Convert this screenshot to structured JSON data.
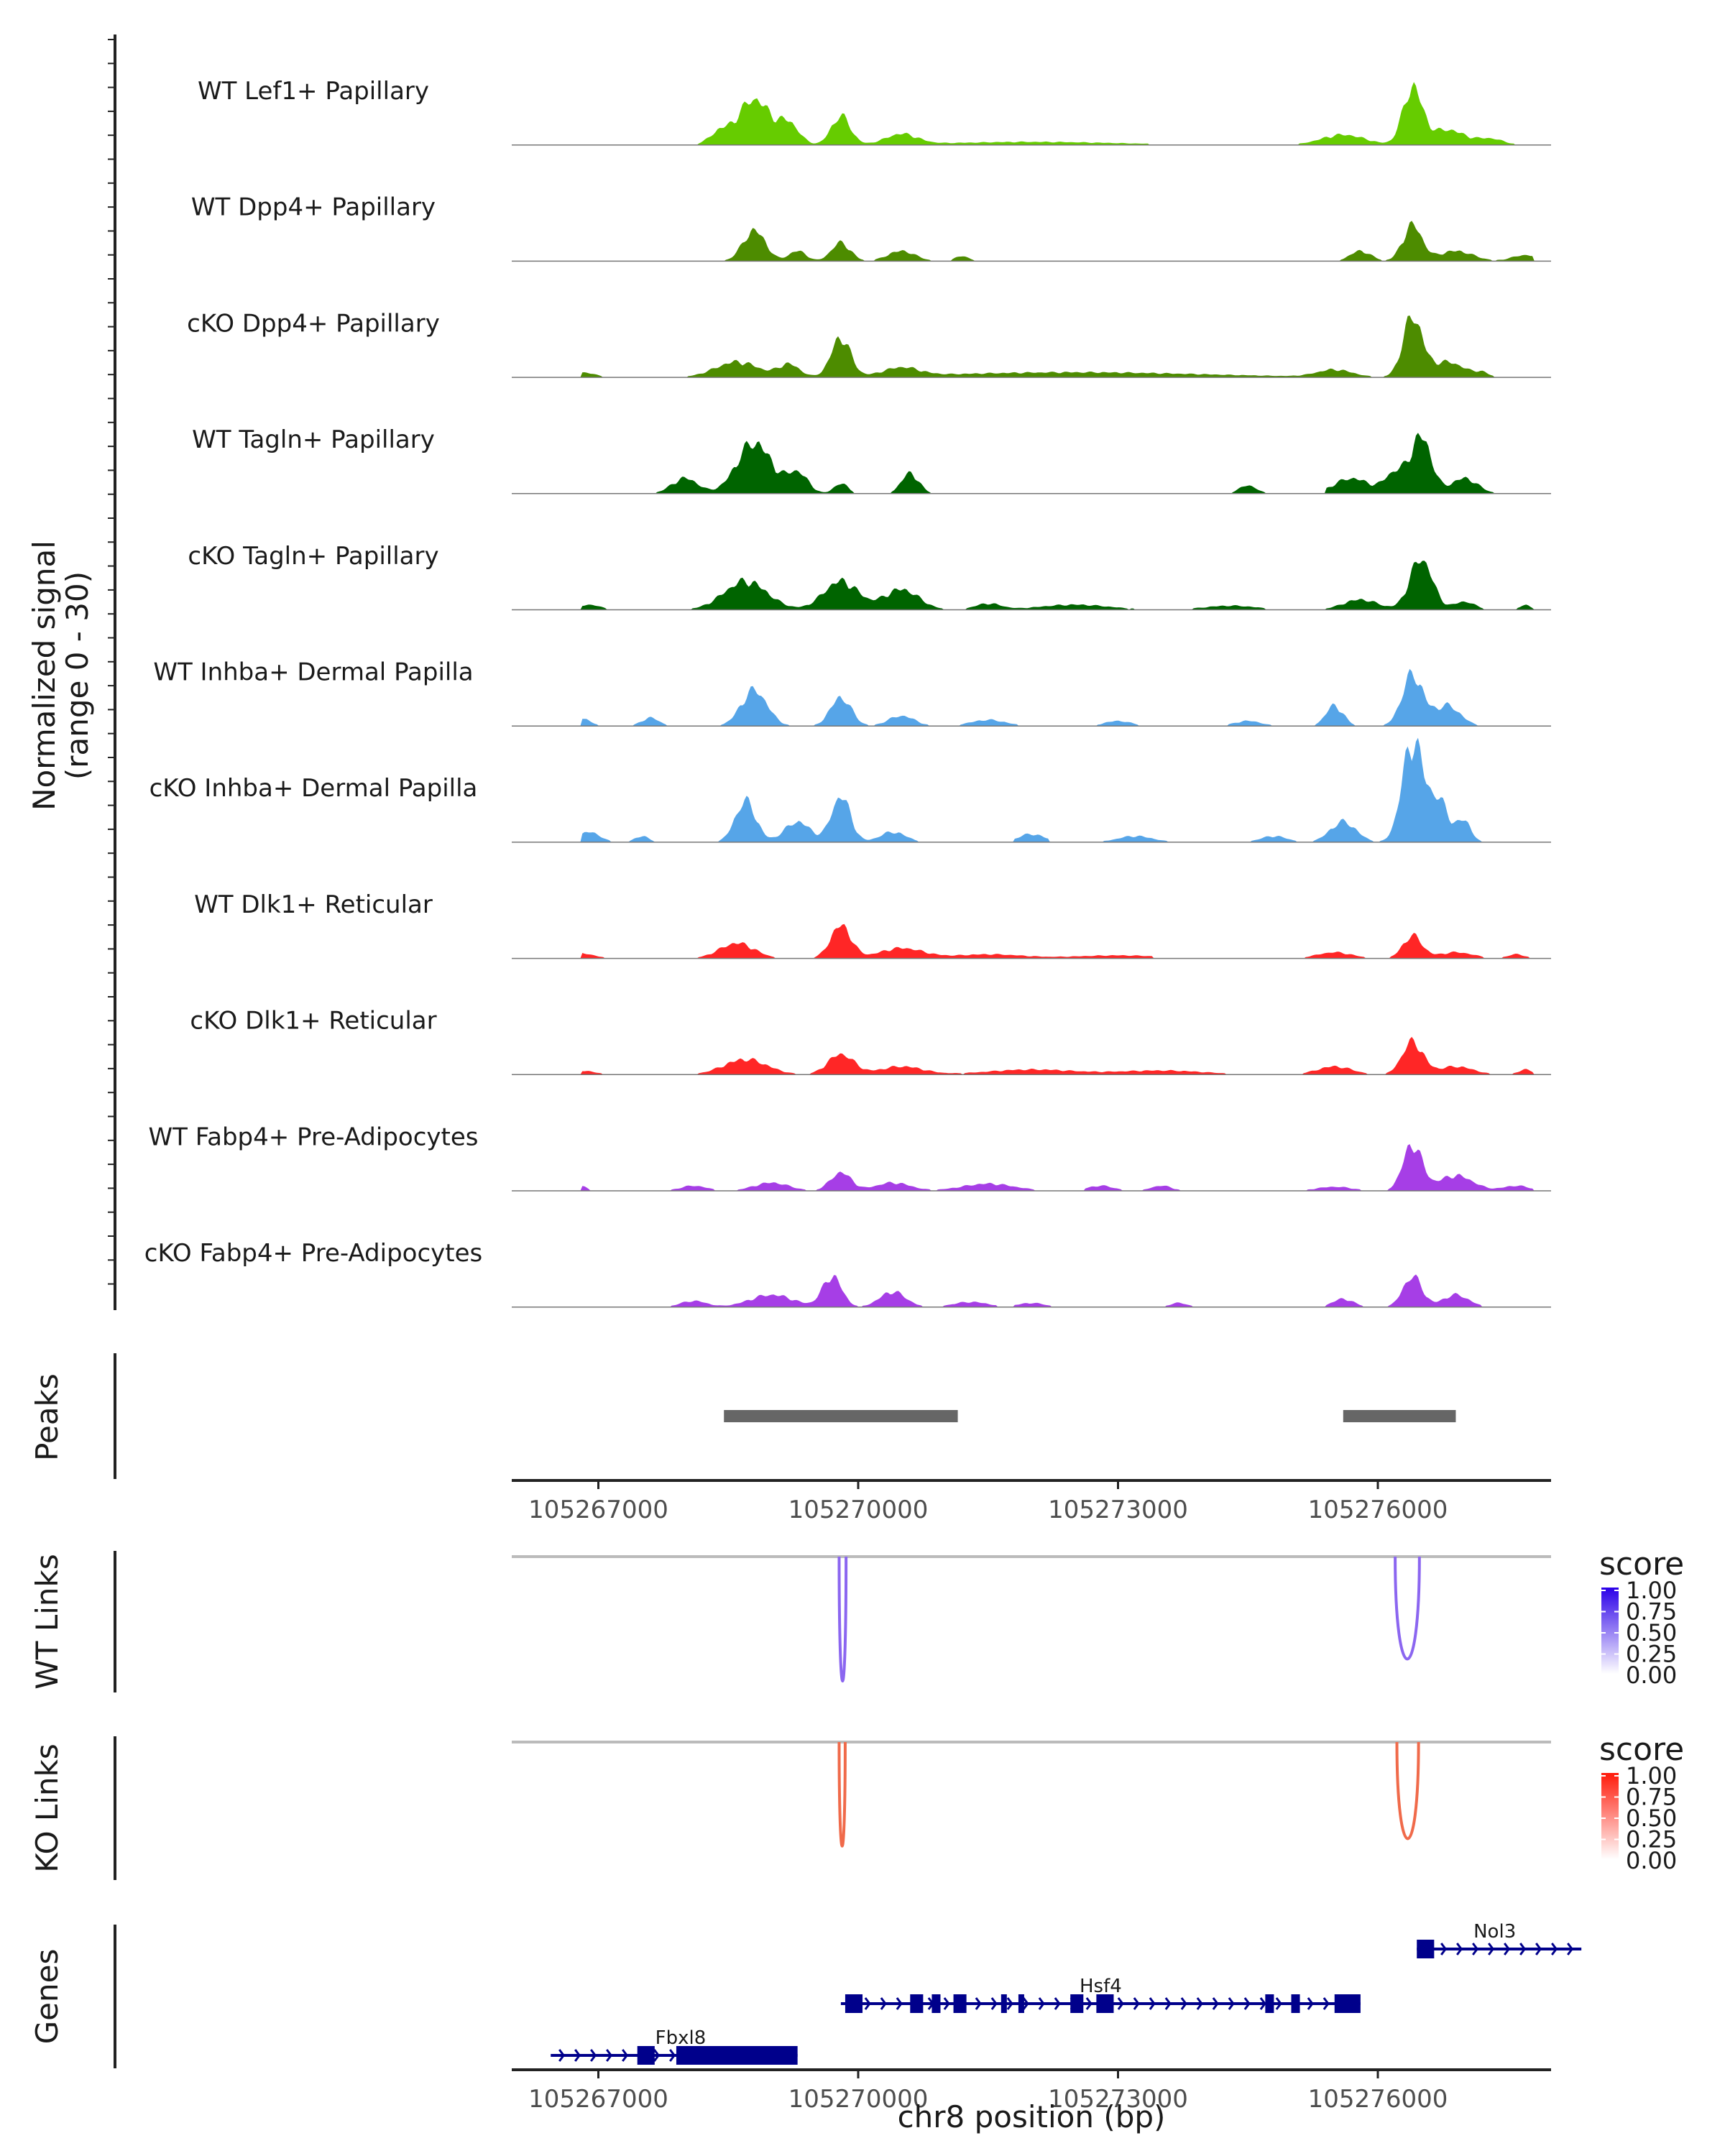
{
  "chart_data": {
    "type": "genome-browser coverage",
    "region": {
      "chrom": "chr8",
      "start": 105266000,
      "end": 105278000
    },
    "coverage": {
      "y_title_line1": "Normalized signal",
      "y_title_line2": "(range 0 - 30)",
      "ylim": [
        0,
        30
      ],
      "tracks": [
        {
          "name": "WT Lef1+ Papillary",
          "color": "#66cc00",
          "peaks": [
            [
              105268400,
              0.12,
              120
            ],
            [
              105268800,
              0.45,
              180
            ],
            [
              105269200,
              0.2,
              120
            ],
            [
              105269800,
              0.28,
              110
            ],
            [
              105270500,
              0.1,
              180
            ],
            [
              105272000,
              0.03,
              1000
            ],
            [
              105275600,
              0.1,
              250
            ],
            [
              105276400,
              0.55,
              110
            ],
            [
              105276800,
              0.15,
              200
            ],
            [
              105277300,
              0.06,
              150
            ]
          ],
          "gaps": []
        },
        {
          "name": "WT Dpp4+ Papillary",
          "color": "#4d8c00",
          "peaks": [
            [
              105266700,
              0.05,
              30
            ],
            [
              105268800,
              0.3,
              130
            ],
            [
              105269300,
              0.1,
              100
            ],
            [
              105269800,
              0.18,
              110
            ],
            [
              105270500,
              0.1,
              160
            ],
            [
              105271200,
              0.05,
              80
            ],
            [
              105275800,
              0.1,
              120
            ],
            [
              105276400,
              0.35,
              110
            ],
            [
              105276900,
              0.1,
              200
            ],
            [
              105277700,
              0.06,
              150
            ]
          ],
          "gaps": [
            [
              105266850,
              105268200
            ],
            [
              105271500,
              105275200
            ]
          ]
        },
        {
          "name": "cKO Dpp4+ Papillary",
          "color": "#4d8c00",
          "peaks": [
            [
              105266800,
              0.05,
              150
            ],
            [
              105268600,
              0.15,
              250
            ],
            [
              105269200,
              0.12,
              120
            ],
            [
              105269800,
              0.38,
              110
            ],
            [
              105270500,
              0.08,
              200
            ],
            [
              105272500,
              0.05,
              1500
            ],
            [
              105275500,
              0.07,
              200
            ],
            [
              105276400,
              0.58,
              110
            ],
            [
              105276800,
              0.15,
              200
            ],
            [
              105277200,
              0.04,
              80
            ]
          ],
          "gaps": []
        },
        {
          "name": "WT Tagln+ Papillary",
          "color": "#006400",
          "peaks": [
            [
              105268000,
              0.15,
              150
            ],
            [
              105268800,
              0.5,
              200
            ],
            [
              105269300,
              0.2,
              120
            ],
            [
              105269800,
              0.1,
              80
            ],
            [
              105270600,
              0.2,
              100
            ],
            [
              105274500,
              0.08,
              100
            ],
            [
              105275700,
              0.15,
              200
            ],
            [
              105276200,
              0.2,
              120
            ],
            [
              105276500,
              0.55,
              120
            ],
            [
              105277000,
              0.15,
              150
            ]
          ],
          "gaps": [
            [
              105270900,
              105274200
            ],
            [
              105274800,
              105275400
            ]
          ]
        },
        {
          "name": "cKO Tagln+ Papillary",
          "color": "#006400",
          "peaks": [
            [
              105266900,
              0.05,
              120
            ],
            [
              105268700,
              0.28,
              250
            ],
            [
              105269800,
              0.28,
              200
            ],
            [
              105270500,
              0.2,
              200
            ],
            [
              105271500,
              0.06,
              150
            ],
            [
              105272500,
              0.05,
              400
            ],
            [
              105274300,
              0.04,
              300
            ],
            [
              105275800,
              0.1,
              200
            ],
            [
              105276500,
              0.5,
              130
            ],
            [
              105277000,
              0.08,
              120
            ],
            [
              105277700,
              0.05,
              60
            ]
          ],
          "gaps": []
        },
        {
          "name": "WT Inhba+ Dermal Papilla",
          "color": "#56a5e8",
          "peaks": [
            [
              105266800,
              0.08,
              100
            ],
            [
              105267600,
              0.08,
              100
            ],
            [
              105268800,
              0.35,
              150
            ],
            [
              105269800,
              0.28,
              120
            ],
            [
              105270500,
              0.1,
              150
            ],
            [
              105271500,
              0.06,
              200
            ],
            [
              105273000,
              0.05,
              150
            ],
            [
              105274500,
              0.05,
              150
            ],
            [
              105275500,
              0.2,
              100
            ],
            [
              105276400,
              0.5,
              120
            ],
            [
              105276800,
              0.2,
              150
            ],
            [
              105277900,
              0.04,
              60
            ]
          ],
          "gaps": []
        },
        {
          "name": "cKO Inhba+ Dermal Papilla",
          "color": "#56a5e8",
          "peaks": [
            [
              105266900,
              0.1,
              120
            ],
            [
              105267500,
              0.06,
              80
            ],
            [
              105268700,
              0.4,
              120
            ],
            [
              105269300,
              0.2,
              150
            ],
            [
              105269800,
              0.45,
              110
            ],
            [
              105270400,
              0.1,
              150
            ],
            [
              105272000,
              0.08,
              150
            ],
            [
              105273200,
              0.06,
              200
            ],
            [
              105274800,
              0.06,
              150
            ],
            [
              105275600,
              0.2,
              150
            ],
            [
              105276400,
              0.98,
              120
            ],
            [
              105276700,
              0.4,
              120
            ],
            [
              105277000,
              0.2,
              80
            ]
          ],
          "gaps": [
            [
              105267900,
              105268300
            ],
            [
              105270800,
              105271800
            ],
            [
              105272200,
              105272800
            ],
            [
              105273700,
              105274500
            ]
          ]
        },
        {
          "name": "WT Dlk1+ Reticular",
          "color": "#ff2626",
          "peaks": [
            [
              105266800,
              0.05,
              150
            ],
            [
              105268600,
              0.15,
              200
            ],
            [
              105269800,
              0.32,
              120
            ],
            [
              105270500,
              0.1,
              250
            ],
            [
              105271500,
              0.04,
              400
            ],
            [
              105273000,
              0.03,
              500
            ],
            [
              105275500,
              0.06,
              200
            ],
            [
              105276400,
              0.22,
              110
            ],
            [
              105276900,
              0.06,
              200
            ],
            [
              105277600,
              0.04,
              100
            ]
          ],
          "gaps": [
            [
              105273400,
              105274800
            ]
          ]
        },
        {
          "name": "cKO Dlk1+ Reticular",
          "color": "#ff2626",
          "peaks": [
            [
              105266800,
              0.04,
              150
            ],
            [
              105268700,
              0.15,
              250
            ],
            [
              105269800,
              0.2,
              150
            ],
            [
              105270500,
              0.08,
              250
            ],
            [
              105272000,
              0.05,
              500
            ],
            [
              105273500,
              0.04,
              500
            ],
            [
              105275500,
              0.08,
              200
            ],
            [
              105276400,
              0.32,
              120
            ],
            [
              105276900,
              0.08,
              200
            ],
            [
              105277700,
              0.05,
              80
            ]
          ],
          "gaps": []
        },
        {
          "name": "WT Fabp4+ Pre-Adipocytes",
          "color": "#a63ee6",
          "peaks": [
            [
              105266800,
              0.05,
              60
            ],
            [
              105268100,
              0.05,
              150
            ],
            [
              105269000,
              0.08,
              200
            ],
            [
              105269800,
              0.18,
              120
            ],
            [
              105270400,
              0.08,
              200
            ],
            [
              105271500,
              0.07,
              300
            ],
            [
              105272800,
              0.05,
              150
            ],
            [
              105273500,
              0.05,
              120
            ],
            [
              105275500,
              0.04,
              200
            ],
            [
              105276400,
              0.45,
              110
            ],
            [
              105276900,
              0.15,
              200
            ],
            [
              105277600,
              0.05,
              150
            ]
          ],
          "gaps": [
            [
              105266950,
              105267700
            ],
            [
              105272100,
              105272600
            ],
            [
              105273800,
              105275000
            ]
          ]
        },
        {
          "name": "cKO Fabp4+ Pre-Adipocytes",
          "color": "#a63ee6",
          "peaks": [
            [
              105268100,
              0.06,
              150
            ],
            [
              105269000,
              0.12,
              250
            ],
            [
              105269700,
              0.3,
              110
            ],
            [
              105270400,
              0.15,
              150
            ],
            [
              105271300,
              0.05,
              200
            ],
            [
              105272000,
              0.04,
              150
            ],
            [
              105273700,
              0.04,
              100
            ],
            [
              105275600,
              0.08,
              120
            ],
            [
              105276400,
              0.3,
              110
            ],
            [
              105276900,
              0.12,
              150
            ]
          ],
          "gaps": [
            [
              105266000,
              105267800
            ],
            [
              105271600,
              105271800
            ],
            [
              105272300,
              105273400
            ],
            [
              105273900,
              105274500
            ],
            [
              105274700,
              105275400
            ],
            [
              105277200,
              105278000
            ]
          ]
        }
      ]
    },
    "peaks_track": {
      "title": "Peaks",
      "regions": [
        [
          105268450,
          105271150
        ],
        [
          105275600,
          105276900
        ]
      ]
    },
    "x_axis": {
      "ticks": [
        105267000,
        105270000,
        105273000,
        105276000
      ],
      "tick_labels": [
        "105267000",
        "105270000",
        "105273000",
        "105276000"
      ]
    },
    "links": [
      {
        "title": "WT Links",
        "legend_title": "score",
        "legend_ticks": [
          "1.00",
          "0.75",
          "0.50",
          "0.25",
          "0.00"
        ],
        "color_high": "#2b00e8",
        "color_mid": "#8b66f0",
        "arcs": [
          [
            105269780,
            105269860,
            0.85
          ],
          [
            105276200,
            105276480,
            0.7
          ]
        ]
      },
      {
        "title": "KO Links",
        "legend_title": "score",
        "legend_ticks": [
          "1.00",
          "0.75",
          "0.50",
          "0.25",
          "0.00"
        ],
        "color_high": "#ff1a0a",
        "color_mid": "#f06a4a",
        "arcs": [
          [
            105269780,
            105269850,
            0.7
          ],
          [
            105276220,
            105276470,
            0.65
          ]
        ]
      }
    ],
    "genes": {
      "title": "Genes",
      "color": "#00008b",
      "items": [
        {
          "name": "Nol3",
          "strand": "+",
          "start": 105276450,
          "end": 105278350,
          "exons": [
            [
              105276450,
              105276650
            ]
          ],
          "row": 0,
          "label_pos": 105277350
        },
        {
          "name": "Hsf4",
          "strand": "+",
          "start": 105269800,
          "end": 105275800,
          "exons": [
            [
              105269850,
              105270050
            ],
            [
              105270600,
              105270750
            ],
            [
              105270850,
              105270950
            ],
            [
              105271100,
              105271250
            ],
            [
              105271650,
              105271700
            ],
            [
              105271850,
              105271900
            ],
            [
              105272450,
              105272600
            ],
            [
              105272750,
              105272950
            ],
            [
              105274700,
              105274800
            ],
            [
              105275000,
              105275100
            ],
            [
              105275500,
              105275800
            ]
          ],
          "row": 1,
          "label_pos": 105272800
        },
        {
          "name": "Fbxl8",
          "strand": "+",
          "start": 105266450,
          "end": 105269300,
          "exons": [
            [
              105267450,
              105267650
            ],
            [
              105267900,
              105269300
            ]
          ],
          "row": 2,
          "label_pos": 105267950
        }
      ],
      "x_title": "chr8 position (bp)"
    }
  }
}
